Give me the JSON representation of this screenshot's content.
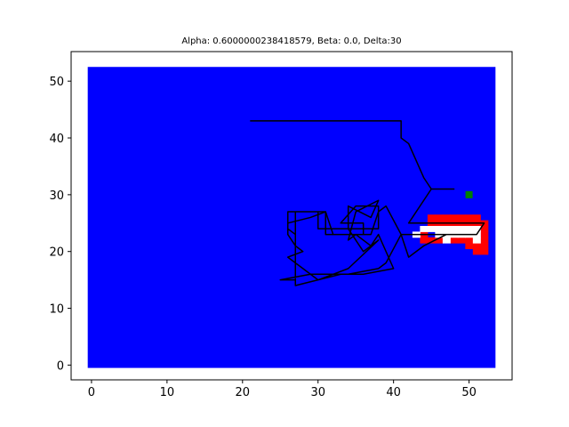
{
  "chart_data": {
    "type": "line",
    "title": "Alpha: 0.6000000238418579, Beta: 0.0, Delta:30",
    "xlabel": "",
    "ylabel": "",
    "xlim": [
      -2.7,
      55.7
    ],
    "ylim": [
      -2.6,
      55.2
    ],
    "xticks": [
      0,
      10,
      20,
      30,
      40,
      50
    ],
    "yticks": [
      0,
      10,
      20,
      30,
      40,
      50
    ],
    "grid": false,
    "colors": {
      "background_region": "#0000ff",
      "obstacle": "#ff0000",
      "free": "#ffffff",
      "path": "#000000",
      "goal": "#008000",
      "axes": "#000000"
    },
    "background_region": {
      "x": [
        -0.5,
        53.5
      ],
      "y": [
        -0.5,
        52.5
      ]
    },
    "obstacle_cells": [
      [
        45,
        26
      ],
      [
        46,
        26
      ],
      [
        47,
        26
      ],
      [
        48,
        26
      ],
      [
        49,
        26
      ],
      [
        50,
        26
      ],
      [
        51,
        26
      ],
      [
        45,
        25
      ],
      [
        46,
        25
      ],
      [
        47,
        25
      ],
      [
        48,
        25
      ],
      [
        49,
        25
      ],
      [
        50,
        25
      ],
      [
        51,
        25
      ],
      [
        52,
        25
      ],
      [
        52,
        24
      ],
      [
        52,
        23
      ],
      [
        52,
        22
      ],
      [
        52,
        21
      ],
      [
        52,
        20
      ],
      [
        51,
        20
      ],
      [
        51,
        21
      ],
      [
        50,
        21
      ],
      [
        44,
        23
      ],
      [
        44,
        22
      ],
      [
        45,
        22
      ],
      [
        46,
        22
      ],
      [
        49,
        22
      ],
      [
        48,
        22
      ],
      [
        50,
        22
      ]
    ],
    "free_cells": [
      [
        45,
        24
      ],
      [
        46,
        24
      ],
      [
        47,
        24
      ],
      [
        48,
        24
      ],
      [
        49,
        24
      ],
      [
        50,
        24
      ],
      [
        51,
        24
      ],
      [
        46,
        23
      ],
      [
        47,
        23
      ],
      [
        48,
        23
      ],
      [
        49,
        23
      ],
      [
        50,
        23
      ],
      [
        51,
        23
      ],
      [
        51,
        22
      ],
      [
        47,
        22
      ],
      [
        43,
        23
      ],
      [
        44,
        24
      ]
    ],
    "path": [
      [
        21,
        43
      ],
      [
        41,
        43
      ],
      [
        41,
        40
      ],
      [
        42,
        39
      ],
      [
        43,
        36
      ],
      [
        44,
        33
      ],
      [
        45,
        31
      ],
      [
        48,
        31
      ],
      [
        45,
        31
      ],
      [
        42,
        25
      ],
      [
        52,
        25
      ],
      [
        51,
        23
      ],
      [
        41,
        23
      ],
      [
        39,
        18
      ],
      [
        38,
        17
      ],
      [
        34,
        16
      ],
      [
        29,
        16
      ],
      [
        25,
        15
      ],
      [
        27,
        15
      ],
      [
        27,
        27
      ],
      [
        30,
        27
      ],
      [
        30,
        24
      ],
      [
        38,
        24
      ],
      [
        38,
        28
      ],
      [
        35,
        28
      ],
      [
        33,
        25
      ],
      [
        36,
        25
      ],
      [
        36,
        23
      ],
      [
        31,
        23
      ],
      [
        31,
        27
      ],
      [
        26,
        27
      ],
      [
        26,
        24
      ],
      [
        27,
        23
      ],
      [
        27,
        14
      ],
      [
        33,
        16
      ],
      [
        36,
        16
      ],
      [
        40,
        17
      ],
      [
        38,
        23
      ],
      [
        37,
        21
      ],
      [
        35,
        23
      ],
      [
        34,
        22
      ],
      [
        35,
        27
      ],
      [
        38,
        29
      ],
      [
        37,
        26
      ],
      [
        34,
        28
      ],
      [
        34,
        24
      ],
      [
        36,
        20
      ],
      [
        38,
        22
      ],
      [
        34,
        17
      ],
      [
        30,
        15
      ],
      [
        26,
        19
      ],
      [
        28,
        20
      ],
      [
        27,
        21
      ],
      [
        26,
        23
      ],
      [
        26,
        25
      ],
      [
        29,
        26
      ],
      [
        31,
        27
      ],
      [
        32,
        23
      ],
      [
        37,
        23
      ],
      [
        38,
        27
      ],
      [
        39,
        28
      ],
      [
        41,
        23
      ],
      [
        42,
        19
      ],
      [
        44,
        21
      ],
      [
        47,
        23
      ],
      [
        51,
        23
      ]
    ],
    "goal": [
      50,
      30
    ]
  }
}
